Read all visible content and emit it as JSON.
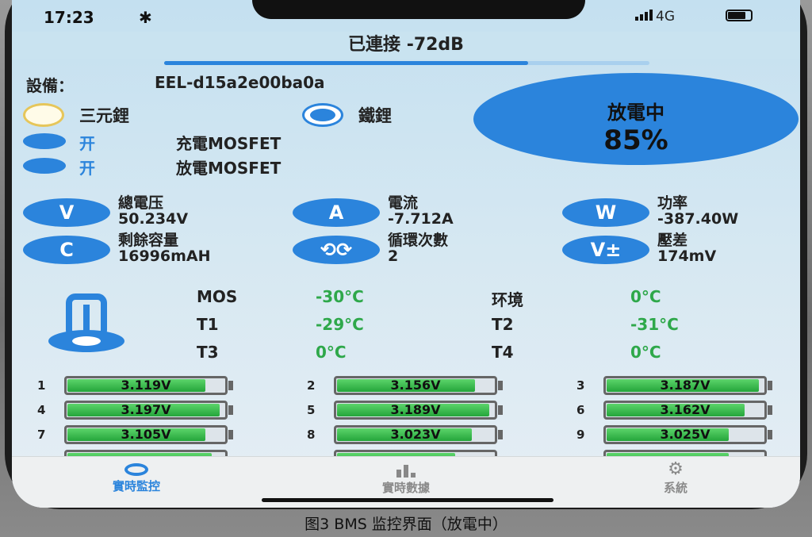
{
  "status": {
    "time": "17:23",
    "network": "4G",
    "icons": [
      "bluetooth-icon",
      "signal-icon",
      "battery-icon"
    ]
  },
  "header": {
    "title": "已連接 -72dB",
    "signal_progress": 0.75
  },
  "device": {
    "label": "設備：",
    "id": "EEL-d15a2e00ba0a"
  },
  "chemistry": {
    "options": [
      "三元鋰",
      "鐵鋰"
    ],
    "selected": "鐵鋰"
  },
  "mosfet": [
    {
      "state": "开",
      "label": "充電MOSFET"
    },
    {
      "state": "开",
      "label": "放電MOSFET"
    }
  ],
  "soc": {
    "status": "放電中",
    "percent": "85%"
  },
  "metrics": [
    {
      "icon": "V",
      "label": "總電压",
      "value": "50.234V"
    },
    {
      "icon": "A",
      "label": "電流",
      "value": "-7.712A"
    },
    {
      "icon": "W",
      "label": "功率",
      "value": "-387.40W"
    },
    {
      "icon": "C",
      "label": "剩餘容量",
      "value": "16996mAH"
    },
    {
      "icon": "cycle-icon",
      "label": "循環次數",
      "value": "2"
    },
    {
      "icon": "V±",
      "label": "壓差",
      "value": "174mV"
    }
  ],
  "temps": [
    {
      "label": "MOS",
      "value": "-30°C"
    },
    {
      "label": "环境",
      "value": "0°C"
    },
    {
      "label": "T1",
      "value": "-29°C"
    },
    {
      "label": "T2",
      "value": "-31°C"
    },
    {
      "label": "T3",
      "value": "0°C"
    },
    {
      "label": "T4",
      "value": "0°C"
    }
  ],
  "cells": [
    {
      "n": "1",
      "v": "3.119V",
      "level": 88
    },
    {
      "n": "2",
      "v": "3.156V",
      "level": 88
    },
    {
      "n": "3",
      "v": "3.187V",
      "level": 97
    },
    {
      "n": "4",
      "v": "3.197V",
      "level": 97
    },
    {
      "n": "5",
      "v": "3.189V",
      "level": 97
    },
    {
      "n": "6",
      "v": "3.162V",
      "level": 88
    },
    {
      "n": "7",
      "v": "3.105V",
      "level": 88
    },
    {
      "n": "8",
      "v": "3.023V",
      "level": 86
    },
    {
      "n": "9",
      "v": "3.025V",
      "level": 78
    }
  ],
  "partial_cells": [
    {
      "level": 92
    },
    {
      "level": 75
    },
    {
      "level": 78
    }
  ],
  "tabs": [
    {
      "label": "實時監控",
      "icon": "gauge-icon",
      "active": true
    },
    {
      "label": "實時數據",
      "icon": "bar-chart-icon"
    },
    {
      "label": "系統",
      "icon": "gear-icon"
    }
  ],
  "caption": "图3 BMS 监控界面（放電中）",
  "colors": {
    "accent": "#2b84dc",
    "good": "#2ea84a"
  }
}
